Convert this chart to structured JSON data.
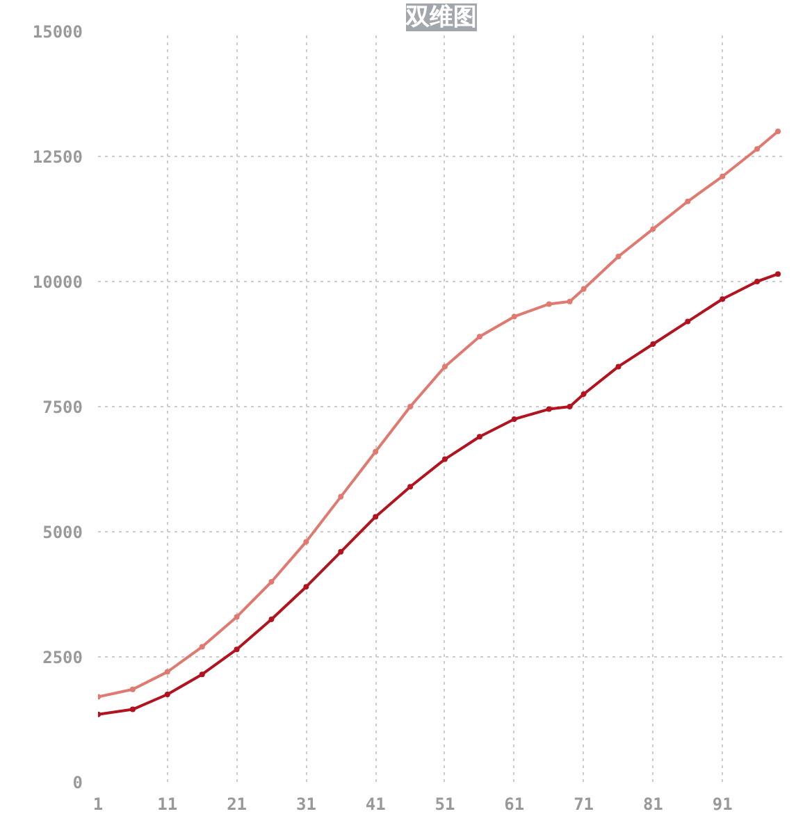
{
  "chart_data": {
    "type": "line",
    "title": "双维图",
    "x": [
      1,
      6,
      11,
      16,
      21,
      26,
      31,
      36,
      41,
      46,
      51,
      56,
      61,
      66,
      69,
      71,
      76,
      81,
      86,
      91,
      96,
      99
    ],
    "series": [
      {
        "color": "#e07a70",
        "values": [
          1700,
          1850,
          2200,
          2700,
          3300,
          4000,
          4800,
          5700,
          6600,
          7500,
          8300,
          8900,
          9300,
          9550,
          9600,
          9850,
          10500,
          11050,
          11600,
          12100,
          12650,
          13000
        ]
      },
      {
        "color": "#b3121f",
        "values": [
          1350,
          1450,
          1750,
          2150,
          2650,
          3250,
          3900,
          4600,
          5300,
          5900,
          6450,
          6900,
          7250,
          7450,
          7500,
          7750,
          8300,
          8750,
          9200,
          9650,
          10000,
          10150
        ]
      }
    ],
    "xlim": [
      1,
      100
    ],
    "xticks": [
      1,
      11,
      21,
      31,
      41,
      51,
      61,
      71,
      81,
      91
    ],
    "ylim": [
      0,
      15000
    ],
    "yticks": [
      0,
      2500,
      5000,
      7500,
      10000,
      12500,
      15000
    ],
    "grid": true,
    "marker": "circle",
    "line_style": "solid"
  }
}
